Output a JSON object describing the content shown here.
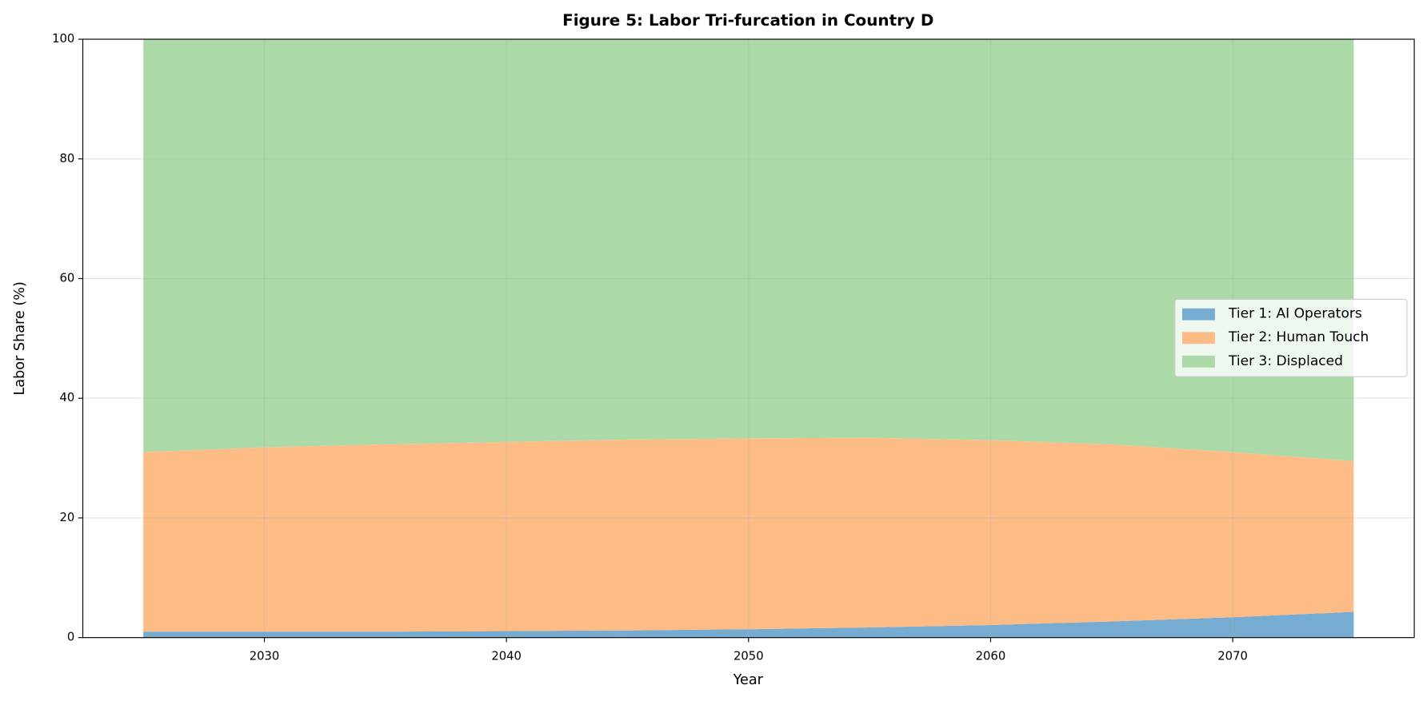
{
  "chart_data": {
    "type": "stackedarea",
    "title": "Figure 5: Labor Tri-furcation in Country D",
    "x_label": "Year",
    "y_label": "Labor Share (%)",
    "x": [
      2025,
      2030,
      2035,
      2040,
      2045,
      2050,
      2055,
      2060,
      2065,
      2070,
      2075
    ],
    "series": [
      {
        "name": "Tier 1: AI Operators",
        "color": "#76abd2",
        "values": [
          1.0,
          1.0,
          1.0,
          1.1,
          1.2,
          1.4,
          1.7,
          2.1,
          2.7,
          3.4,
          4.3
        ]
      },
      {
        "name": "Tier 2: Human Touch",
        "color": "#fdbc86",
        "values": [
          30.0,
          30.8,
          31.3,
          31.6,
          31.9,
          31.9,
          31.7,
          30.9,
          29.6,
          27.6,
          25.2
        ]
      },
      {
        "name": "Tier 3: Displaced",
        "color": "#abd9a8",
        "values": [
          69.0,
          68.2,
          67.7,
          67.3,
          66.9,
          66.7,
          66.6,
          67.0,
          67.7,
          69.0,
          70.5
        ]
      }
    ],
    "xlim": [
      2022.5,
      2077.5
    ],
    "ylim": [
      0,
      100
    ],
    "xticks": [
      2030,
      2040,
      2050,
      2060,
      2070
    ],
    "yticks": [
      0,
      20,
      40,
      60,
      80,
      100
    ],
    "grid": true,
    "legend": "right"
  }
}
